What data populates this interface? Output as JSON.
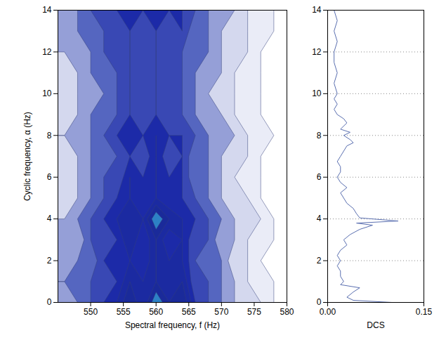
{
  "chart_data": [
    {
      "type": "contour",
      "x_label": "Spectral frequency, f (Hz)",
      "y_label": "Cyclic frequency, α (Hz)",
      "xlim": [
        545,
        580
      ],
      "xticks": [
        550,
        555,
        560,
        565,
        570,
        575,
        580
      ],
      "ylim": [
        0,
        14
      ],
      "yticks": [
        0,
        2,
        4,
        6,
        8,
        10,
        12,
        14
      ],
      "color": "#1c2aa8",
      "x": [
        546,
        548,
        550,
        552,
        554,
        556,
        558,
        560,
        562,
        564,
        566,
        568,
        570,
        572,
        574,
        576,
        578,
        580
      ],
      "y": [
        0,
        1,
        2,
        3,
        4,
        5,
        6,
        7,
        8,
        9,
        10,
        11,
        12,
        13,
        14
      ],
      "values": [
        [
          3,
          4,
          5,
          6,
          7,
          9,
          7,
          10,
          8,
          9,
          6,
          5,
          4,
          3,
          2,
          2,
          1,
          0
        ],
        [
          4,
          4,
          5,
          5,
          6,
          8,
          7,
          8,
          7,
          8,
          5,
          5,
          4,
          3,
          2,
          1,
          1,
          0
        ],
        [
          3,
          4,
          4,
          6,
          6,
          7,
          6,
          8,
          7,
          7,
          5,
          4,
          4,
          2,
          2,
          1,
          0,
          0
        ],
        [
          3,
          3,
          5,
          5,
          6,
          8,
          6,
          8,
          6,
          7,
          5,
          5,
          3,
          3,
          2,
          1,
          1,
          0
        ],
        [
          3,
          4,
          5,
          6,
          7,
          8,
          7,
          10,
          8,
          7,
          6,
          5,
          4,
          3,
          2,
          2,
          1,
          0
        ],
        [
          2,
          3,
          4,
          5,
          6,
          7,
          6,
          7,
          6,
          6,
          5,
          4,
          3,
          2,
          2,
          1,
          0,
          0
        ],
        [
          2,
          3,
          4,
          5,
          5,
          7,
          6,
          7,
          6,
          6,
          4,
          4,
          3,
          2,
          1,
          1,
          0,
          0
        ],
        [
          2,
          3,
          4,
          4,
          5,
          6,
          5,
          7,
          5,
          6,
          4,
          4,
          3,
          2,
          2,
          1,
          0,
          0
        ],
        [
          3,
          3,
          4,
          5,
          6,
          7,
          6,
          7,
          6,
          6,
          5,
          4,
          3,
          3,
          2,
          1,
          1,
          0
        ],
        [
          2,
          3,
          4,
          4,
          5,
          6,
          5,
          6,
          5,
          5,
          4,
          3,
          3,
          2,
          1,
          1,
          0,
          0
        ],
        [
          2,
          3,
          3,
          4,
          5,
          6,
          5,
          6,
          5,
          5,
          4,
          3,
          2,
          2,
          1,
          1,
          0,
          0
        ],
        [
          2,
          3,
          4,
          4,
          5,
          6,
          5,
          6,
          5,
          5,
          4,
          3,
          3,
          2,
          1,
          1,
          0,
          0
        ],
        [
          3,
          3,
          4,
          5,
          5,
          6,
          5,
          6,
          5,
          5,
          4,
          4,
          3,
          2,
          2,
          1,
          0,
          0
        ],
        [
          3,
          4,
          4,
          5,
          5,
          6,
          5,
          6,
          5,
          6,
          4,
          4,
          3,
          2,
          2,
          1,
          1,
          0
        ],
        [
          3,
          4,
          5,
          5,
          6,
          7,
          6,
          7,
          6,
          6,
          5,
          4,
          3,
          3,
          2,
          1,
          1,
          0
        ]
      ]
    },
    {
      "type": "line",
      "x_label": "DCS",
      "xlim": [
        0,
        0.15
      ],
      "xticks": [
        0,
        0.15
      ],
      "ylim": [
        0,
        14
      ],
      "yticks": [
        0,
        2,
        4,
        6,
        8,
        10,
        12,
        14
      ],
      "grid": true,
      "color": "#5a6fb0",
      "y": [
        0,
        0.1,
        0.25,
        0.5,
        0.7,
        0.85,
        1,
        1.25,
        1.5,
        1.75,
        2,
        2.25,
        2.5,
        2.75,
        3,
        3.25,
        3.5,
        3.7,
        3.8,
        3.9,
        4.05,
        4.25,
        4.5,
        4.75,
        5,
        5.25,
        5.5,
        5.75,
        6,
        6.25,
        6.5,
        6.75,
        7,
        7.25,
        7.5,
        7.65,
        7.8,
        8,
        8.15,
        8.3,
        8.6,
        8.8,
        9,
        9.25,
        9.5,
        9.75,
        10,
        10.5,
        11,
        11.5,
        12,
        12.5,
        13,
        13.5,
        14
      ],
      "values": [
        0.1,
        0.04,
        0.03,
        0.04,
        0.05,
        0.02,
        0.025,
        0.02,
        0.02,
        0.015,
        0.02,
        0.015,
        0.02,
        0.03,
        0.025,
        0.035,
        0.05,
        0.07,
        0.045,
        0.11,
        0.05,
        0.045,
        0.04,
        0.03,
        0.025,
        0.02,
        0.03,
        0.02,
        0.015,
        0.02,
        0.02,
        0.015,
        0.02,
        0.025,
        0.03,
        0.04,
        0.035,
        0.025,
        0.035,
        0.02,
        0.03,
        0.025,
        0.015,
        0.01,
        0.015,
        0.01,
        0.015,
        0.01,
        0.015,
        0.01,
        0.01,
        0.015,
        0.01,
        0.015,
        0.01
      ]
    }
  ]
}
